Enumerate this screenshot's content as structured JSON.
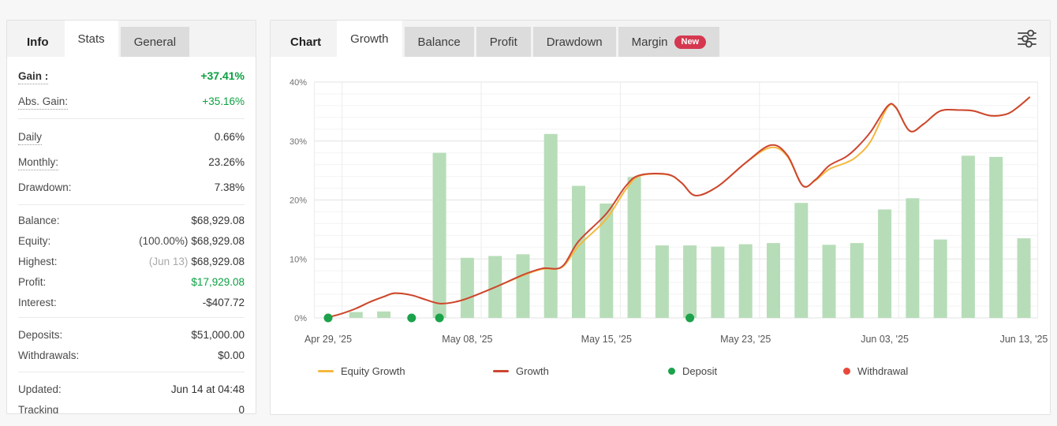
{
  "colors": {
    "accent_green": "#0aa040",
    "bar_green": "#b7ddb8",
    "growth_line_red": "#cc4632",
    "equity_line_yellow": "#f4b840",
    "deposit_dot_green": "#1ca24a",
    "withdrawal_dot_red": "#e8483b",
    "new_badge_red": "#d5374f",
    "tab_inactive_bg": "#dcdcdc",
    "strip_bg": "#f3f3f3"
  },
  "stats_panel": {
    "tabs": [
      {
        "label": "Info",
        "style": "plain"
      },
      {
        "label": "Stats",
        "style": "active"
      },
      {
        "label": "General",
        "style": "inactive"
      }
    ],
    "groups": [
      [
        {
          "label": "Gain :",
          "value": "+37.41%",
          "label_bold": true,
          "dotted": true,
          "value_green": true,
          "value_bold": true
        },
        {
          "label": "Abs. Gain:",
          "value": "+35.16%",
          "dotted": true,
          "value_green": true
        }
      ],
      [
        {
          "label": "Daily",
          "value": "0.66%",
          "dotted": true
        },
        {
          "label": "Monthly:",
          "value": "23.26%",
          "dotted": true
        },
        {
          "label": "Drawdown:",
          "value": "7.38%"
        }
      ],
      [
        {
          "label": "Balance:",
          "value": "$68,929.08"
        },
        {
          "label": "Equity:",
          "value": "$68,929.08",
          "prefix": "(100.00%)"
        },
        {
          "label": "Highest:",
          "value": "$68,929.08",
          "prefix": "(Jun 13)",
          "prefix_muted": true
        },
        {
          "label": "Profit:",
          "value": "$17,929.08",
          "value_green": true
        },
        {
          "label": "Interest:",
          "value": "-$407.72"
        }
      ],
      [
        {
          "label": "Deposits:",
          "value": "$51,000.00"
        },
        {
          "label": "Withdrawals:",
          "value": "$0.00"
        }
      ],
      [
        {
          "label": "Updated:",
          "value": "Jun 14 at 04:48"
        },
        {
          "label": "Tracking",
          "value": "0"
        }
      ]
    ]
  },
  "chart_panel": {
    "tabs": [
      {
        "label": "Chart",
        "style": "plain"
      },
      {
        "label": "Growth",
        "style": "active"
      },
      {
        "label": "Balance",
        "style": "inactive"
      },
      {
        "label": "Profit",
        "style": "inactive"
      },
      {
        "label": "Drawdown",
        "style": "inactive"
      },
      {
        "label": "Margin",
        "style": "inactive",
        "badge": "New"
      }
    ],
    "settings_icon": "sliders-icon"
  },
  "chart_data": {
    "type": "mixed",
    "title": "Growth",
    "grid": true,
    "ylim": [
      0,
      40
    ],
    "y_ticks": [
      {
        "value": 0,
        "label": "0%"
      },
      {
        "value": 10,
        "label": "10%"
      },
      {
        "value": 20,
        "label": "20%"
      },
      {
        "value": 30,
        "label": "30%"
      },
      {
        "value": 40,
        "label": "40%"
      }
    ],
    "x_ticks": [
      {
        "slot": 0,
        "label": "Apr 29, '25"
      },
      {
        "slot": 5,
        "label": "May 08, '25"
      },
      {
        "slot": 10,
        "label": "May 15, '25"
      },
      {
        "slot": 15,
        "label": "May 23, '25"
      },
      {
        "slot": 20,
        "label": "Jun 03, '25"
      },
      {
        "slot": 25,
        "label": "Jun 13, '25"
      }
    ],
    "bars": {
      "name": "Daily growth bars (%)",
      "points": [
        [
          1,
          1.0
        ],
        [
          2,
          1.1
        ],
        [
          4,
          28.0
        ],
        [
          5,
          10.2
        ],
        [
          6,
          10.5
        ],
        [
          7,
          10.8
        ],
        [
          8,
          31.2
        ],
        [
          9,
          22.4
        ],
        [
          10,
          19.4
        ],
        [
          11,
          23.9
        ],
        [
          12,
          12.3
        ],
        [
          13,
          12.3
        ],
        [
          14,
          12.1
        ],
        [
          15,
          12.5
        ],
        [
          16,
          12.7
        ],
        [
          17,
          19.5
        ],
        [
          18,
          12.4
        ],
        [
          19,
          12.7
        ],
        [
          20,
          18.4
        ],
        [
          21,
          20.3
        ],
        [
          22,
          13.3
        ],
        [
          23,
          27.5
        ],
        [
          24,
          27.3
        ],
        [
          25,
          13.5
        ]
      ]
    },
    "series": [
      {
        "name": "Equity Growth",
        "color_key": "equity_line_yellow",
        "points": [
          [
            0,
            0.1
          ],
          [
            0.5,
            0.75
          ],
          [
            1,
            1.6
          ],
          [
            1.5,
            2.7
          ],
          [
            2,
            3.6
          ],
          [
            2.4,
            4.2
          ],
          [
            3,
            3.85
          ],
          [
            3.5,
            3.1
          ],
          [
            4,
            2.45
          ],
          [
            4.5,
            2.65
          ],
          [
            5,
            3.3
          ],
          [
            6,
            5.2
          ],
          [
            7,
            7.2
          ],
          [
            7.7,
            8.3
          ],
          [
            8.4,
            8.6
          ],
          [
            9,
            12.2
          ],
          [
            10,
            16.8
          ],
          [
            10.7,
            21.8
          ],
          [
            11.2,
            24.1
          ],
          [
            12.2,
            24.3
          ],
          [
            12.7,
            22.9
          ],
          [
            13.2,
            20.75
          ],
          [
            14,
            22.3
          ],
          [
            15,
            26.3
          ],
          [
            15.9,
            28.9
          ],
          [
            16.5,
            27.4
          ],
          [
            17.05,
            22.45
          ],
          [
            17.5,
            23.3
          ],
          [
            18,
            25.2
          ],
          [
            18.6,
            26.3
          ],
          [
            19,
            27.4
          ],
          [
            19.5,
            30.0
          ],
          [
            20.1,
            35.7
          ],
          [
            20.4,
            35.6
          ],
          [
            20.9,
            31.7
          ],
          [
            21.4,
            32.9
          ],
          [
            22,
            35.1
          ],
          [
            22.7,
            35.25
          ],
          [
            23.2,
            35.1
          ],
          [
            23.8,
            34.3
          ],
          [
            24.4,
            34.6
          ],
          [
            24.8,
            35.8
          ],
          [
            25.2,
            37.4
          ]
        ]
      },
      {
        "name": "Growth",
        "color_key": "growth_line_red",
        "points": [
          [
            0,
            0.1
          ],
          [
            0.5,
            0.75
          ],
          [
            1,
            1.6
          ],
          [
            1.5,
            2.7
          ],
          [
            2,
            3.6
          ],
          [
            2.4,
            4.2
          ],
          [
            3,
            3.85
          ],
          [
            3.5,
            3.1
          ],
          [
            4,
            2.45
          ],
          [
            4.5,
            2.65
          ],
          [
            5,
            3.3
          ],
          [
            6,
            5.2
          ],
          [
            7,
            7.3
          ],
          [
            7.7,
            8.4
          ],
          [
            8.4,
            8.7
          ],
          [
            9,
            13.0
          ],
          [
            10,
            17.7
          ],
          [
            10.7,
            22.4
          ],
          [
            11.2,
            24.2
          ],
          [
            12.2,
            24.35
          ],
          [
            12.7,
            22.9
          ],
          [
            13.2,
            20.75
          ],
          [
            14,
            22.3
          ],
          [
            15,
            26.3
          ],
          [
            15.9,
            29.3
          ],
          [
            16.5,
            27.6
          ],
          [
            17.05,
            22.45
          ],
          [
            17.5,
            23.4
          ],
          [
            18,
            25.8
          ],
          [
            18.6,
            27.3
          ],
          [
            19,
            28.9
          ],
          [
            19.5,
            31.6
          ],
          [
            20.1,
            35.9
          ],
          [
            20.4,
            35.7
          ],
          [
            20.9,
            31.7
          ],
          [
            21.4,
            32.9
          ],
          [
            22,
            35.1
          ],
          [
            22.7,
            35.25
          ],
          [
            23.2,
            35.1
          ],
          [
            23.8,
            34.3
          ],
          [
            24.4,
            34.6
          ],
          [
            24.8,
            35.8
          ],
          [
            25.2,
            37.4
          ]
        ]
      }
    ],
    "deposits": {
      "slots": [
        0,
        3,
        4,
        13
      ],
      "value": 0
    },
    "withdrawals": {
      "slots": []
    },
    "legend": [
      {
        "label": "Equity Growth",
        "marker": "line",
        "color_key": "equity_line_yellow"
      },
      {
        "label": "Growth",
        "marker": "line",
        "color_key": "growth_line_red"
      },
      {
        "label": "Deposit",
        "marker": "dot",
        "color_key": "deposit_dot_green"
      },
      {
        "label": "Withdrawal",
        "marker": "dot",
        "color_key": "withdrawal_dot_red"
      }
    ],
    "legend_position": "bottom"
  }
}
